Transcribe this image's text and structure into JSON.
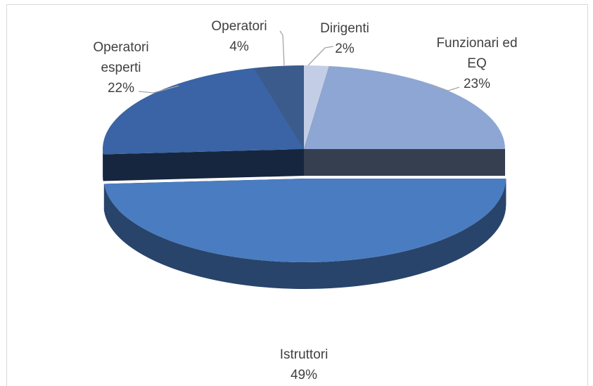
{
  "chart_data": {
    "type": "pie",
    "categories": [
      "Dirigenti",
      "Funzionari ed EQ",
      "Istruttori",
      "Operatori esperti",
      "Operatori"
    ],
    "values": [
      2,
      23,
      49,
      22,
      4
    ],
    "value_labels": [
      "2%",
      "23%",
      "49%",
      "22%",
      "4%"
    ],
    "colors": [
      "#c3cee6",
      "#8ea6d3",
      "#4a7cc1",
      "#3a64a5",
      "#3b5b8c"
    ],
    "explode": [
      false,
      false,
      true,
      false,
      false
    ],
    "three_d": true
  }
}
